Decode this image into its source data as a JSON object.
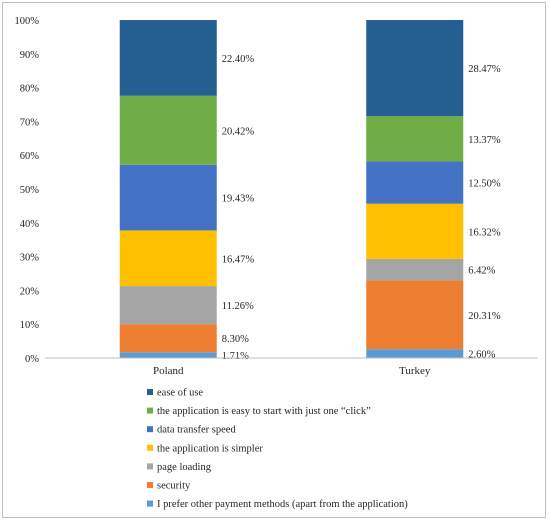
{
  "chart_data": {
    "type": "bar",
    "stacked": true,
    "percent": true,
    "categories": [
      "Poland",
      "Turkey"
    ],
    "series": [
      {
        "name": "I prefer other payment methods (apart from the application)",
        "color": "#5b9bd5",
        "values": [
          1.71,
          2.6
        ],
        "labels": [
          "1.71%",
          "2.60%"
        ]
      },
      {
        "name": "security",
        "color": "#ed7d31",
        "values": [
          8.3,
          20.31
        ],
        "labels": [
          "8.30%",
          "20.31%"
        ]
      },
      {
        "name": "page loading",
        "color": "#a5a5a5",
        "values": [
          11.26,
          6.42
        ],
        "labels": [
          "11.26%",
          "6.42%"
        ]
      },
      {
        "name": "the application is simpler",
        "color": "#ffc000",
        "values": [
          16.47,
          16.32
        ],
        "labels": [
          "16.47%",
          "16.32%"
        ]
      },
      {
        "name": "data transfer speed",
        "color": "#4472c4",
        "values": [
          19.43,
          12.5
        ],
        "labels": [
          "19.43%",
          "12.50%"
        ]
      },
      {
        "name": "the application is easy to start with just one “click”",
        "color": "#70ad47",
        "values": [
          20.42,
          13.37
        ],
        "labels": [
          "20.42%",
          "13.37%"
        ]
      },
      {
        "name": "ease of use",
        "color": "#255e91",
        "values": [
          22.4,
          28.47
        ],
        "labels": [
          "22.40%",
          "28.47%"
        ]
      }
    ],
    "ylim": [
      0,
      100
    ],
    "yticks": [
      "0%",
      "10%",
      "20%",
      "30%",
      "40%",
      "50%",
      "60%",
      "70%",
      "80%",
      "90%",
      "100%"
    ],
    "legend_position": "bottom",
    "legend_order": [
      6,
      5,
      4,
      3,
      2,
      1,
      0
    ],
    "grid": false
  }
}
